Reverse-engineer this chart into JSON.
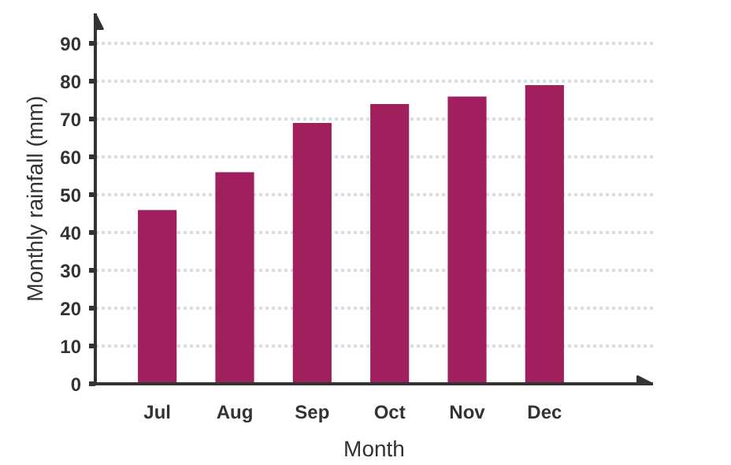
{
  "chart_data": {
    "type": "bar",
    "xlabel": "Month",
    "ylabel": "Monthly rainfall (mm)",
    "categories": [
      "Jul",
      "Aug",
      "Sep",
      "Oct",
      "Nov",
      "Dec"
    ],
    "values": [
      46,
      56,
      69,
      74,
      76,
      79
    ],
    "color": "#a0205e",
    "ylim": [
      0,
      98
    ],
    "yticks": [
      0,
      10,
      20,
      30,
      40,
      50,
      60,
      70,
      80,
      90
    ],
    "grid": "y"
  }
}
